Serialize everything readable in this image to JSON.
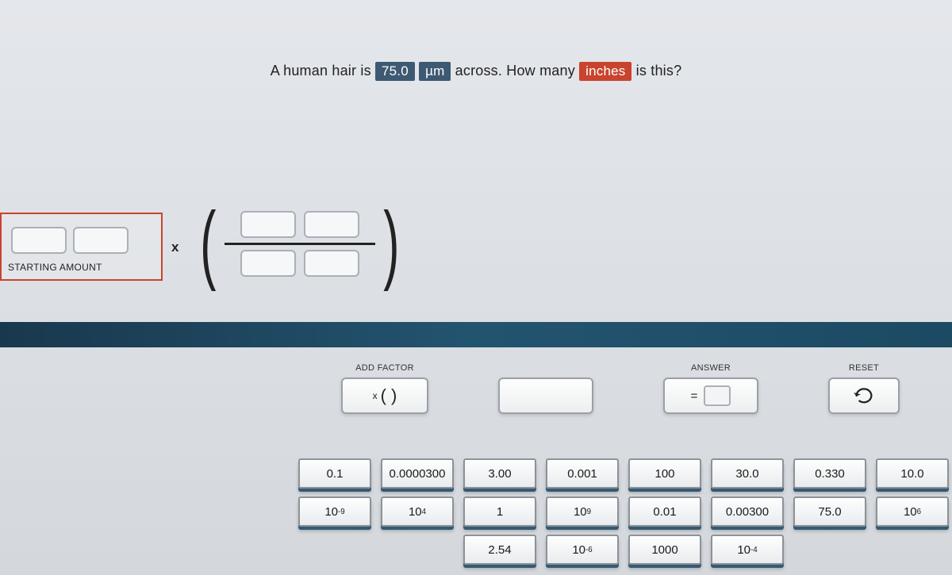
{
  "question": {
    "part1": "A human hair is ",
    "value_chip": "75.0",
    "unit_chip": "µm",
    "part2": " across. How many ",
    "target_chip": "inches",
    "part3": " is this?"
  },
  "starting": {
    "label": "STARTING AMOUNT",
    "times_symbol": "x"
  },
  "controls": {
    "add_factor_label": "ADD FACTOR",
    "add_factor_display_prefix": "x",
    "add_factor_display": "(  )",
    "answer_label": "ANSWER",
    "equals": "=",
    "reset_label": "RESET"
  },
  "tile_rows": [
    [
      "0.1",
      "0.0000300",
      "3.00",
      "0.001",
      "100",
      "30.0",
      "0.330",
      "10.0"
    ],
    [
      "10<sup>-9</sup>",
      "10<sup>4</sup>",
      "1",
      "10<sup>9</sup>",
      "0.01",
      "0.00300",
      "75.0",
      "10<sup>6</sup>"
    ],
    [
      "",
      "",
      "2.54",
      "10<sup>-6</sup>",
      "1000",
      "10<sup>-4</sup>",
      "",
      ""
    ]
  ],
  "colors": {
    "accent_red": "#c8442f",
    "accent_blue": "#3e5a73",
    "bar_gradient_from": "#19384e",
    "bar_gradient_to": "#1c4a63",
    "tile_shadow": "#355a73"
  }
}
